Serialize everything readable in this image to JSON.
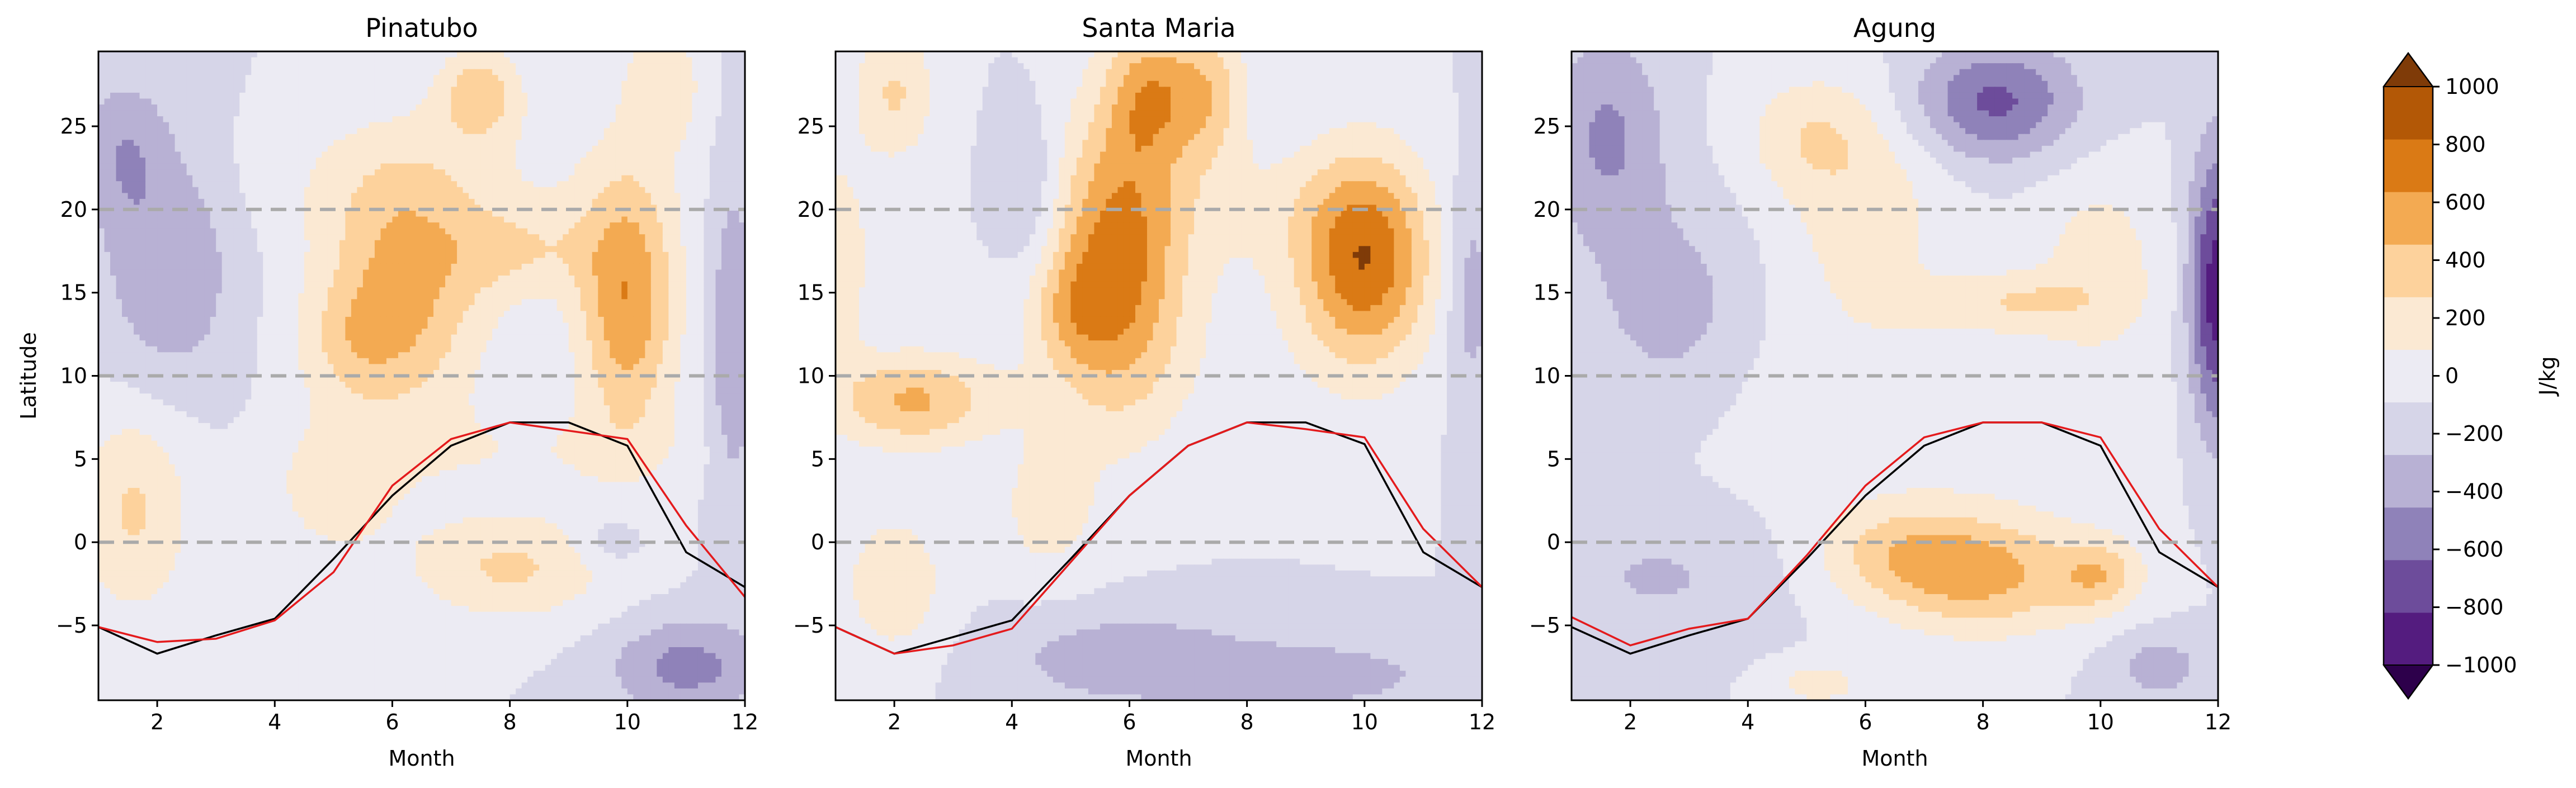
{
  "figure": {
    "ylabel": "Latitude",
    "xlabel": "Month",
    "colorbar_label": "J/kg"
  },
  "colors": {
    "levels": [
      -1000,
      -800,
      -600,
      -400,
      -200,
      0,
      200,
      400,
      600,
      800,
      1000
    ],
    "bins": [
      "#541c7f",
      "#6d4c9b",
      "#8f82b9",
      "#b8b1d4",
      "#d6d5e8",
      "#ecebf3",
      "#fbe9d3",
      "#fdd29c",
      "#f3aa52",
      "#da7a15",
      "#b35806"
    ],
    "under": "#2d004b",
    "over": "#7f3b08",
    "dashed_line": "#aaaaaa",
    "line_black": "#000000",
    "line_red": "#e41a1c"
  },
  "chart_data": [
    {
      "type": "heatmap",
      "title": "Pinatubo",
      "xlabel": "Month",
      "ylabel": "Latitude",
      "x_range": [
        1,
        12
      ],
      "y_range": [
        -9.5,
        29.5
      ],
      "x_ticks": [
        2,
        4,
        6,
        8,
        10,
        12
      ],
      "y_ticks": [
        -5,
        0,
        5,
        10,
        15,
        20,
        25
      ],
      "h_dashed_lines": [
        0,
        10,
        20
      ],
      "blobs": [
        {
          "x": 6.2,
          "y": 15.5,
          "sx": 1.0,
          "sy": 5.5,
          "a": 650
        },
        {
          "x": 5.3,
          "y": 12.0,
          "sx": 0.7,
          "sy": 2.5,
          "a": 250
        },
        {
          "x": 10.0,
          "y": 14.5,
          "sx": 0.6,
          "sy": 5.5,
          "a": 780
        },
        {
          "x": 8.2,
          "y": 17.5,
          "sx": 0.9,
          "sy": 2.0,
          "a": 320
        },
        {
          "x": 7.5,
          "y": 27.0,
          "sx": 0.5,
          "sy": 2.0,
          "a": 500
        },
        {
          "x": 10.6,
          "y": 27.5,
          "sx": 0.5,
          "sy": 2.5,
          "a": 350
        },
        {
          "x": 1.6,
          "y": 2.0,
          "sx": 0.7,
          "sy": 4.5,
          "a": 430
        },
        {
          "x": 8.0,
          "y": -1.5,
          "sx": 1.2,
          "sy": 2.3,
          "a": 430
        },
        {
          "x": 5.0,
          "y": 3.0,
          "sx": 0.8,
          "sy": 3.0,
          "a": 280
        },
        {
          "x": 8.5,
          "y": 5.5,
          "sx": 2.2,
          "sy": 2.0,
          "a": 170
        },
        {
          "x": 6.5,
          "y": 22.0,
          "sx": 3.0,
          "sy": 3.0,
          "a": 140
        },
        {
          "x": 2.2,
          "y": 17.0,
          "sx": 0.8,
          "sy": 5.5,
          "a": -400
        },
        {
          "x": 1.4,
          "y": 23.5,
          "sx": 0.5,
          "sy": 3.0,
          "a": -330
        },
        {
          "x": 11.0,
          "y": -7.5,
          "sx": 0.9,
          "sy": 2.0,
          "a": -480
        },
        {
          "x": 11.8,
          "y": 12.0,
          "sx": 0.3,
          "sy": 8.0,
          "a": -380
        },
        {
          "x": 9.7,
          "y": 0.0,
          "sx": 0.4,
          "sy": 1.0,
          "a": -220
        }
      ],
      "series": [
        {
          "name": "black",
          "color": "#000000",
          "x": [
            1,
            2,
            3,
            4,
            5,
            6,
            7,
            8,
            9,
            10,
            11,
            12
          ],
          "y": [
            -5.1,
            -6.7,
            -5.6,
            -4.6,
            -1.0,
            2.8,
            5.8,
            7.2,
            7.2,
            5.8,
            -0.6,
            -2.7
          ]
        },
        {
          "name": "red",
          "color": "#e41a1c",
          "x": [
            1,
            2,
            3,
            4,
            5,
            6,
            7,
            8,
            9,
            10,
            11,
            12
          ],
          "y": [
            -5.1,
            -6.0,
            -5.8,
            -4.7,
            -1.8,
            3.4,
            6.2,
            7.2,
            6.7,
            6.2,
            1.0,
            -3.3
          ]
        }
      ]
    },
    {
      "type": "heatmap",
      "title": "Santa Maria",
      "xlabel": "Month",
      "ylabel": "",
      "x_range": [
        1,
        12
      ],
      "y_range": [
        -9.5,
        29.5
      ],
      "x_ticks": [
        2,
        4,
        6,
        8,
        10,
        12
      ],
      "y_ticks": [
        -5,
        0,
        5,
        10,
        15,
        20,
        25
      ],
      "h_dashed_lines": [
        0,
        10,
        20
      ],
      "blobs": [
        {
          "x": 5.8,
          "y": 17.0,
          "sx": 0.8,
          "sy": 6.5,
          "a": 850
        },
        {
          "x": 5.0,
          "y": 14.0,
          "sx": 0.5,
          "sy": 2.5,
          "a": 300
        },
        {
          "x": 10.0,
          "y": 17.0,
          "sx": 0.8,
          "sy": 4.5,
          "a": 950
        },
        {
          "x": 6.3,
          "y": 27.0,
          "sx": 0.5,
          "sy": 3.0,
          "a": 550
        },
        {
          "x": 7.3,
          "y": 27.0,
          "sx": 0.5,
          "sy": 3.0,
          "a": 520
        },
        {
          "x": 2.0,
          "y": 27.0,
          "sx": 0.5,
          "sy": 3.0,
          "a": 420
        },
        {
          "x": 2.3,
          "y": 8.5,
          "sx": 1.0,
          "sy": 2.0,
          "a": 620
        },
        {
          "x": 2.0,
          "y": -2.5,
          "sx": 0.6,
          "sy": 3.0,
          "a": 380
        },
        {
          "x": 4.6,
          "y": 2.0,
          "sx": 0.6,
          "sy": 3.0,
          "a": 300
        },
        {
          "x": 1.0,
          "y": 17.0,
          "sx": 0.4,
          "sy": 4.0,
          "a": 400
        },
        {
          "x": 8.0,
          "y": 20.0,
          "sx": 1.5,
          "sy": 3.0,
          "a": 180
        },
        {
          "x": 7.0,
          "y": 11.0,
          "sx": 2.5,
          "sy": 4.0,
          "a": 90
        },
        {
          "x": 6.0,
          "y": -7.0,
          "sx": 1.5,
          "sy": 2.0,
          "a": -350
        },
        {
          "x": 9.3,
          "y": -8.0,
          "sx": 1.5,
          "sy": 1.5,
          "a": -300
        },
        {
          "x": 4.3,
          "y": 21.0,
          "sx": 0.4,
          "sy": 3.5,
          "a": -260
        },
        {
          "x": 11.8,
          "y": 15.0,
          "sx": 0.3,
          "sy": 5.0,
          "a": -330
        }
      ],
      "series": [
        {
          "name": "black",
          "color": "#000000",
          "x": [
            1,
            2,
            3,
            4,
            5,
            6,
            7,
            8,
            9,
            10,
            11,
            12
          ],
          "y": [
            -5.1,
            -6.7,
            -5.7,
            -4.7,
            -1.0,
            2.8,
            5.8,
            7.2,
            7.2,
            5.9,
            -0.6,
            -2.7
          ]
        },
        {
          "name": "red",
          "color": "#e41a1c",
          "x": [
            1,
            2,
            3,
            4,
            5,
            6,
            7,
            8,
            9,
            10,
            11,
            12
          ],
          "y": [
            -5.1,
            -6.7,
            -6.2,
            -5.2,
            -1.2,
            2.8,
            5.8,
            7.2,
            6.8,
            6.3,
            0.8,
            -2.7
          ]
        }
      ]
    },
    {
      "type": "heatmap",
      "title": "Agung",
      "xlabel": "Month",
      "ylabel": "",
      "x_range": [
        1,
        12
      ],
      "y_range": [
        -9.5,
        29.5
      ],
      "x_ticks": [
        2,
        4,
        6,
        8,
        10,
        12
      ],
      "y_ticks": [
        -5,
        0,
        5,
        10,
        15,
        20,
        25
      ],
      "h_dashed_lines": [
        0,
        10,
        20
      ],
      "blobs": [
        {
          "x": 8.2,
          "y": 26.5,
          "sx": 1.0,
          "sy": 2.5,
          "a": -650
        },
        {
          "x": 1.6,
          "y": 24.5,
          "sx": 0.7,
          "sy": 4.5,
          "a": -430
        },
        {
          "x": 2.7,
          "y": 14.0,
          "sx": 1.0,
          "sy": 4.5,
          "a": -300
        },
        {
          "x": 12.0,
          "y": 15.0,
          "sx": 0.35,
          "sy": 6.0,
          "a": -950
        },
        {
          "x": 2.5,
          "y": -2.0,
          "sx": 1.5,
          "sy": 3.0,
          "a": -220
        },
        {
          "x": 11.0,
          "y": -7.5,
          "sx": 0.6,
          "sy": 1.5,
          "a": -300
        },
        {
          "x": 8.0,
          "y": -2.0,
          "sx": 1.3,
          "sy": 2.5,
          "a": 640
        },
        {
          "x": 10.0,
          "y": -2.0,
          "sx": 0.5,
          "sy": 1.5,
          "a": 420
        },
        {
          "x": 6.5,
          "y": -0.5,
          "sx": 1.0,
          "sy": 2.0,
          "a": 330
        },
        {
          "x": 6.0,
          "y": 20.0,
          "sx": 1.0,
          "sy": 5.0,
          "a": 300
        },
        {
          "x": 8.5,
          "y": 14.5,
          "sx": 1.0,
          "sy": 1.2,
          "a": 320
        },
        {
          "x": 10.0,
          "y": 17.0,
          "sx": 0.8,
          "sy": 4.0,
          "a": 280
        },
        {
          "x": 5.0,
          "y": 24.5,
          "sx": 0.8,
          "sy": 2.5,
          "a": 300
        },
        {
          "x": 7.0,
          "y": 8.0,
          "sx": 3.0,
          "sy": 5.0,
          "a": 140
        },
        {
          "x": 5.2,
          "y": -8.5,
          "sx": 0.6,
          "sy": 1.0,
          "a": 300
        }
      ],
      "series": [
        {
          "name": "black",
          "color": "#000000",
          "x": [
            1,
            2,
            3,
            4,
            5,
            6,
            7,
            8,
            9,
            10,
            11,
            12
          ],
          "y": [
            -5.1,
            -6.7,
            -5.6,
            -4.6,
            -1.0,
            2.8,
            5.8,
            7.2,
            7.2,
            5.8,
            -0.6,
            -2.7
          ]
        },
        {
          "name": "red",
          "color": "#e41a1c",
          "x": [
            1,
            2,
            3,
            4,
            5,
            6,
            7,
            8,
            9,
            10,
            11,
            12
          ],
          "y": [
            -4.5,
            -6.2,
            -5.2,
            -4.6,
            -0.8,
            3.4,
            6.3,
            7.2,
            7.2,
            6.3,
            0.8,
            -2.7
          ]
        }
      ]
    }
  ],
  "colorbar": {
    "label": "J/kg",
    "extend": "both",
    "tick_labels": [
      "−1000",
      "−800",
      "−600",
      "−400",
      "−200",
      "0",
      "200",
      "400",
      "600",
      "800",
      "1000"
    ]
  }
}
